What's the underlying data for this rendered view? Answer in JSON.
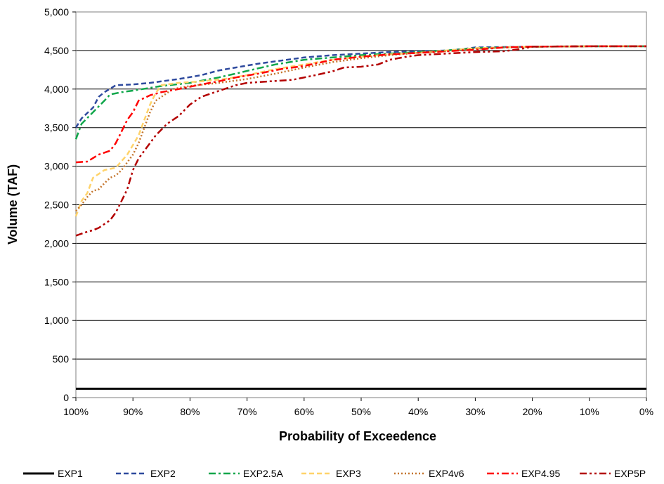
{
  "chart_data": {
    "type": "line",
    "title": "",
    "xlabel": "Probability of Exceedence",
    "ylabel": "Volume (TAF)",
    "xlim": [
      100,
      0
    ],
    "ylim": [
      0,
      5000
    ],
    "x_ticks": [
      100,
      90,
      80,
      70,
      60,
      50,
      40,
      30,
      20,
      10,
      0
    ],
    "x_tick_labels": [
      "100%",
      "90%",
      "80%",
      "70%",
      "60%",
      "50%",
      "40%",
      "30%",
      "20%",
      "10%",
      "0%"
    ],
    "y_ticks": [
      0,
      500,
      1000,
      1500,
      2000,
      2500,
      3000,
      3500,
      4000,
      4500,
      5000
    ],
    "y_tick_labels": [
      "0",
      "500",
      "1,000",
      "1,500",
      "2,000",
      "2,500",
      "3,000",
      "3,500",
      "4,000",
      "4,500",
      "5,000"
    ],
    "grid": "horizontal",
    "legend_position": "bottom",
    "series": [
      {
        "name": "EXP1",
        "color": "#000000",
        "dash": "solid",
        "points": [
          [
            100,
            115
          ],
          [
            0,
            115
          ]
        ]
      },
      {
        "name": "EXP2",
        "color": "#2e4a9e",
        "dash": "dash",
        "points": [
          [
            100,
            3500
          ],
          [
            99,
            3620
          ],
          [
            97,
            3760
          ],
          [
            96,
            3900
          ],
          [
            95,
            3960
          ],
          [
            93,
            4050
          ],
          [
            90,
            4060
          ],
          [
            87,
            4080
          ],
          [
            85,
            4100
          ],
          [
            82,
            4130
          ],
          [
            78,
            4180
          ],
          [
            75,
            4240
          ],
          [
            72,
            4280
          ],
          [
            68,
            4330
          ],
          [
            64,
            4370
          ],
          [
            60,
            4410
          ],
          [
            55,
            4440
          ],
          [
            50,
            4460
          ],
          [
            45,
            4480
          ],
          [
            40,
            4490
          ],
          [
            35,
            4500
          ],
          [
            32,
            4520
          ],
          [
            30,
            4540
          ],
          [
            25,
            4545
          ],
          [
            20,
            4550
          ],
          [
            10,
            4555
          ],
          [
            0,
            4555
          ]
        ]
      },
      {
        "name": "EXP2.5A",
        "color": "#0fa64a",
        "dash": "dashdot",
        "points": [
          [
            100,
            3350
          ],
          [
            99,
            3550
          ],
          [
            97,
            3700
          ],
          [
            95,
            3850
          ],
          [
            94,
            3930
          ],
          [
            92,
            3960
          ],
          [
            90,
            3980
          ],
          [
            85,
            4040
          ],
          [
            80,
            4080
          ],
          [
            75,
            4150
          ],
          [
            72,
            4200
          ],
          [
            68,
            4270
          ],
          [
            65,
            4320
          ],
          [
            60,
            4380
          ],
          [
            55,
            4410
          ],
          [
            50,
            4440
          ],
          [
            45,
            4460
          ],
          [
            40,
            4480
          ],
          [
            35,
            4500
          ],
          [
            30,
            4530
          ],
          [
            25,
            4540
          ],
          [
            20,
            4548
          ],
          [
            10,
            4555
          ],
          [
            0,
            4555
          ]
        ]
      },
      {
        "name": "EXP3",
        "color": "#ffd36a",
        "dash": "dash",
        "points": [
          [
            100,
            2350
          ],
          [
            99,
            2550
          ],
          [
            98,
            2650
          ],
          [
            97,
            2850
          ],
          [
            96,
            2900
          ],
          [
            95,
            2950
          ],
          [
            93,
            2980
          ],
          [
            91,
            3150
          ],
          [
            89,
            3400
          ],
          [
            88,
            3600
          ],
          [
            87,
            3800
          ],
          [
            86,
            3950
          ],
          [
            85,
            4050
          ],
          [
            82,
            4080
          ],
          [
            78,
            4100
          ],
          [
            74,
            4130
          ],
          [
            70,
            4180
          ],
          [
            65,
            4260
          ],
          [
            60,
            4320
          ],
          [
            55,
            4380
          ],
          [
            50,
            4420
          ],
          [
            45,
            4450
          ],
          [
            40,
            4470
          ],
          [
            35,
            4500
          ],
          [
            30,
            4530
          ],
          [
            25,
            4540
          ],
          [
            20,
            4550
          ],
          [
            10,
            4555
          ],
          [
            0,
            4555
          ]
        ]
      },
      {
        "name": "EXP4v6",
        "color": "#c4752d",
        "dash": "dot",
        "points": [
          [
            100,
            2420
          ],
          [
            99,
            2500
          ],
          [
            98,
            2600
          ],
          [
            97,
            2680
          ],
          [
            96,
            2700
          ],
          [
            95,
            2780
          ],
          [
            94,
            2850
          ],
          [
            93,
            2880
          ],
          [
            92,
            2950
          ],
          [
            91,
            3050
          ],
          [
            90,
            3150
          ],
          [
            89,
            3300
          ],
          [
            88,
            3500
          ],
          [
            87,
            3700
          ],
          [
            86,
            3850
          ],
          [
            84,
            3950
          ],
          [
            83,
            4000
          ],
          [
            80,
            4040
          ],
          [
            75,
            4080
          ],
          [
            70,
            4130
          ],
          [
            65,
            4200
          ],
          [
            60,
            4280
          ],
          [
            55,
            4350
          ],
          [
            50,
            4400
          ],
          [
            45,
            4440
          ],
          [
            40,
            4470
          ],
          [
            35,
            4490
          ],
          [
            30,
            4520
          ],
          [
            25,
            4540
          ],
          [
            20,
            4550
          ],
          [
            10,
            4555
          ],
          [
            0,
            4555
          ]
        ]
      },
      {
        "name": "EXP4.95",
        "color": "#ff0000",
        "dash": "dashdot",
        "points": [
          [
            100,
            3050
          ],
          [
            98,
            3060
          ],
          [
            96,
            3150
          ],
          [
            94,
            3200
          ],
          [
            93,
            3300
          ],
          [
            92,
            3450
          ],
          [
            91,
            3600
          ],
          [
            90,
            3700
          ],
          [
            89,
            3850
          ],
          [
            87,
            3920
          ],
          [
            85,
            3960
          ],
          [
            82,
            4000
          ],
          [
            78,
            4060
          ],
          [
            75,
            4100
          ],
          [
            72,
            4150
          ],
          [
            68,
            4200
          ],
          [
            64,
            4260
          ],
          [
            60,
            4300
          ],
          [
            55,
            4380
          ],
          [
            50,
            4420
          ],
          [
            45,
            4450
          ],
          [
            40,
            4470
          ],
          [
            35,
            4490
          ],
          [
            30,
            4510
          ],
          [
            25,
            4540
          ],
          [
            20,
            4550
          ],
          [
            10,
            4555
          ],
          [
            0,
            4555
          ]
        ]
      },
      {
        "name": "EXP5P",
        "color": "#b30000",
        "dash": "dashdotdot",
        "points": [
          [
            100,
            2100
          ],
          [
            98,
            2150
          ],
          [
            97,
            2170
          ],
          [
            96,
            2200
          ],
          [
            94,
            2300
          ],
          [
            93,
            2400
          ],
          [
            92,
            2550
          ],
          [
            91,
            2700
          ],
          [
            90,
            2950
          ],
          [
            89,
            3100
          ],
          [
            88,
            3200
          ],
          [
            86,
            3400
          ],
          [
            84,
            3550
          ],
          [
            82,
            3650
          ],
          [
            80,
            3800
          ],
          [
            78,
            3900
          ],
          [
            76,
            3950
          ],
          [
            74,
            4000
          ],
          [
            72,
            4050
          ],
          [
            70,
            4080
          ],
          [
            66,
            4100
          ],
          [
            62,
            4120
          ],
          [
            58,
            4180
          ],
          [
            55,
            4230
          ],
          [
            53,
            4280
          ],
          [
            50,
            4290
          ],
          [
            47,
            4320
          ],
          [
            45,
            4380
          ],
          [
            42,
            4420
          ],
          [
            40,
            4440
          ],
          [
            35,
            4460
          ],
          [
            30,
            4480
          ],
          [
            25,
            4490
          ],
          [
            22,
            4520
          ],
          [
            20,
            4550
          ],
          [
            10,
            4555
          ],
          [
            0,
            4555
          ]
        ]
      }
    ]
  }
}
